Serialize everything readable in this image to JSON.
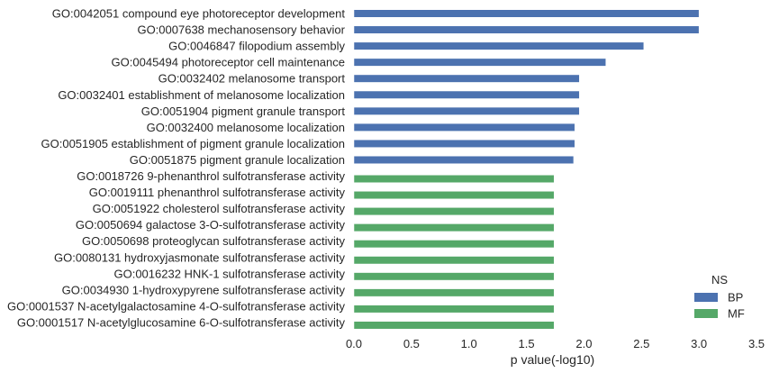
{
  "chart_data": {
    "type": "bar",
    "orientation": "horizontal",
    "title": "",
    "xlabel": "p value(-log10)",
    "ylabel": "",
    "xlim": [
      0,
      3.5
    ],
    "xticks": [
      "0.0",
      "0.5",
      "1.0",
      "1.5",
      "2.0",
      "2.5",
      "3.0",
      "3.5"
    ],
    "grid": false,
    "legend": {
      "title": "NS",
      "position": "bottom-right",
      "entries": [
        {
          "name": "BP",
          "color": "#4c72b0"
        },
        {
          "name": "MF",
          "color": "#55a868"
        }
      ]
    },
    "categories": [
      "GO:0042051 compound eye photoreceptor development",
      "GO:0007638 mechanosensory behavior",
      "GO:0046847 filopodium assembly",
      "GO:0045494 photoreceptor cell maintenance",
      "GO:0032402 melanosome transport",
      "GO:0032401 establishment of melanosome localization",
      "GO:0051904 pigment granule transport",
      "GO:0032400 melanosome localization",
      "GO:0051905 establishment of pigment granule localization",
      "GO:0051875 pigment granule localization",
      "GO:0018726 9-phenanthrol sulfotransferase activity",
      "GO:0019111 phenanthrol sulfotransferase activity",
      "GO:0051922 cholesterol sulfotransferase activity",
      "GO:0050694 galactose 3-O-sulfotransferase activity",
      "GO:0050698 proteoglycan sulfotransferase activity",
      "GO:0080131 hydroxyjasmonate sulfotransferase activity",
      "GO:0016232 HNK-1 sulfotransferase activity",
      "GO:0034930 1-hydroxypyrene sulfotransferase activity",
      "GO:0001537 N-acetylgalactosamine 4-O-sulfotransferase activity",
      "GO:0001517 N-acetylglucosamine 6-O-sulfotransferase activity"
    ],
    "series": [
      {
        "name": "BP",
        "color": "#4c72b0",
        "values": [
          3.0,
          3.0,
          2.52,
          2.19,
          1.96,
          1.96,
          1.96,
          1.92,
          1.92,
          1.91,
          null,
          null,
          null,
          null,
          null,
          null,
          null,
          null,
          null,
          null
        ]
      },
      {
        "name": "MF",
        "color": "#55a868",
        "values": [
          null,
          null,
          null,
          null,
          null,
          null,
          null,
          null,
          null,
          null,
          1.74,
          1.74,
          1.74,
          1.74,
          1.74,
          1.74,
          1.74,
          1.74,
          1.74,
          1.74
        ]
      }
    ]
  }
}
